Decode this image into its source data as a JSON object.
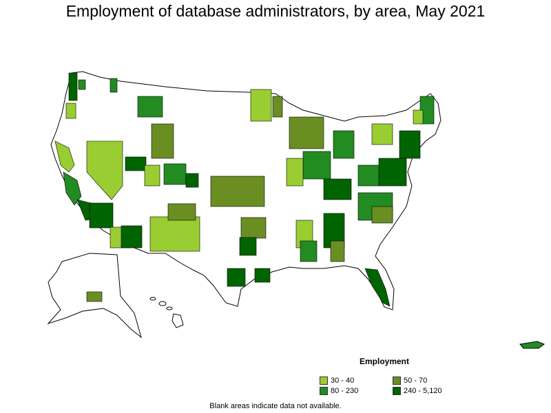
{
  "title": "Employment of database administrators, by area, May 2021",
  "legend": {
    "title": "Employment",
    "items": [
      {
        "label": "30 - 40",
        "color": "#9ACD32"
      },
      {
        "label": "50 - 70",
        "color": "#6B8E23"
      },
      {
        "label": "80 - 230",
        "color": "#228B22"
      },
      {
        "label": "240 - 5,120",
        "color": "#006400"
      }
    ]
  },
  "note": "Blank areas indicate data not available.",
  "colors": {
    "no_data": "#FFFFFF",
    "border": "#000000"
  }
}
